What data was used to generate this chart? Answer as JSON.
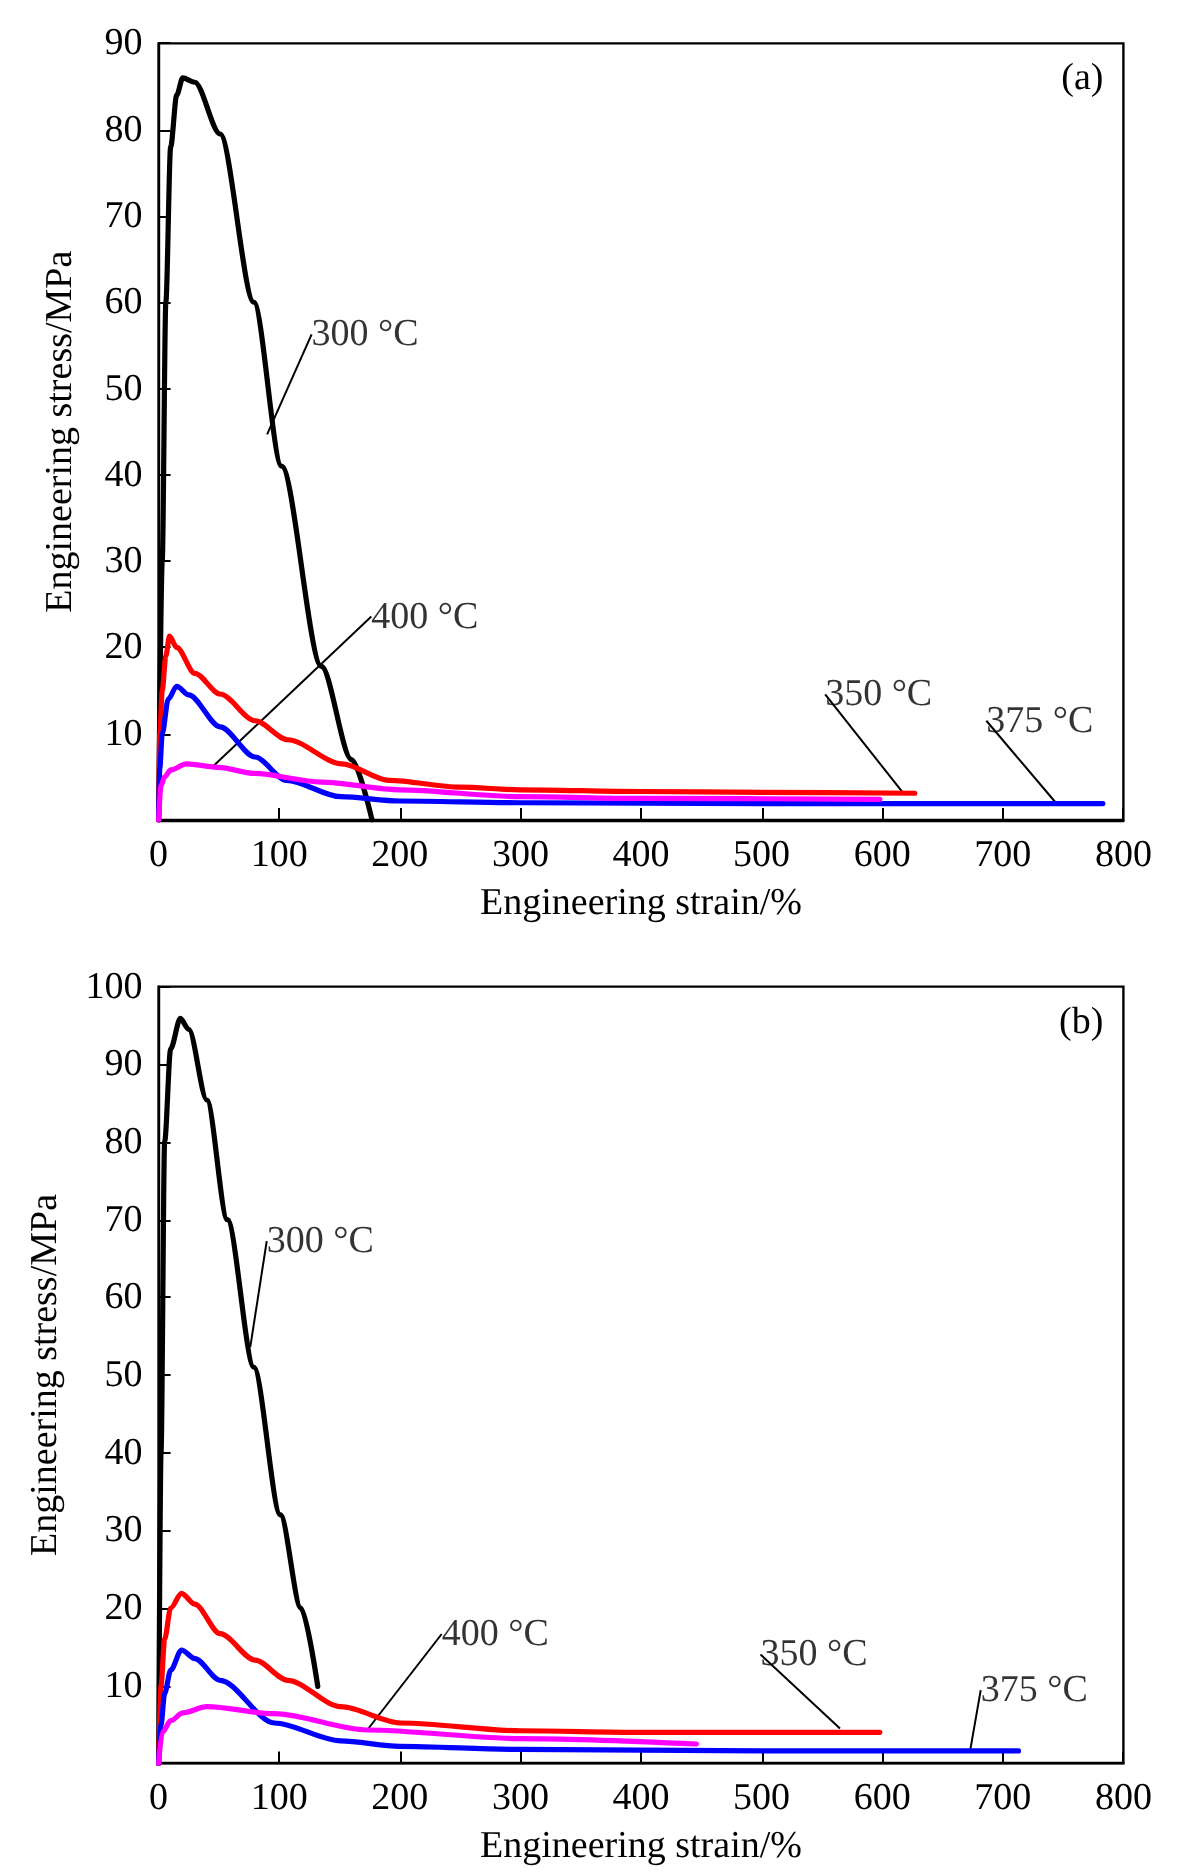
{
  "chart_data": [
    {
      "type": "line",
      "xlabel": "Engineering strain/%",
      "ylabel": "Engineering stress/MPa",
      "xlim": [
        0,
        800
      ],
      "xticks": [
        0,
        100,
        200,
        300,
        400,
        500,
        600,
        700,
        800
      ],
      "ylim": [
        0,
        90
      ],
      "yticks": [
        {
          "value": 0,
          "label": null
        },
        10,
        20,
        30,
        40,
        50,
        60,
        70,
        80,
        90
      ],
      "marker": "none",
      "line_style": "solid",
      "annotations": [
        "(a)",
        {
          "text": "300 °C",
          "x": 90,
          "y": 44.7
        },
        {
          "text": "400 °C",
          "x": 45,
          "y": 6.2
        },
        {
          "text": "350 °C",
          "x": 617,
          "y": 3.2
        },
        {
          "text": "375 °C",
          "x": 744,
          "y": 2
        }
      ],
      "series": [
        {
          "color": "#000000",
          "x": [
            0,
            3,
            6,
            10,
            15,
            20,
            30,
            51,
            79,
            102,
            135,
            160,
            177
          ],
          "values": [
            0,
            30,
            60,
            78,
            84,
            86,
            85.5,
            79.5,
            60,
            41,
            17.8,
            7,
            0
          ]
        },
        {
          "color": "#ff0000",
          "x": [
            0,
            1,
            3,
            6,
            9,
            15,
            30,
            51,
            80,
            107,
            152,
            191,
            250,
            300,
            400,
            500,
            627
          ],
          "values": [
            0,
            10,
            15,
            19,
            21.3,
            20,
            17,
            14.6,
            11.5,
            9.3,
            6.5,
            4.6,
            3.8,
            3.5,
            3.3,
            3.2,
            3.1
          ]
        },
        {
          "color": "#0000ff",
          "x": [
            0,
            1,
            3,
            8,
            15,
            25,
            51,
            80,
            106,
            151,
            200,
            300,
            500,
            783
          ],
          "values": [
            0,
            6,
            10,
            14,
            15.5,
            14.5,
            10.8,
            7.3,
            4.6,
            2.7,
            2.2,
            2,
            1.9,
            1.9
          ]
        },
        {
          "color": "#ff00ff",
          "x": [
            0,
            2,
            5,
            10,
            23,
            50,
            79,
            135,
            200,
            300,
            400,
            598
          ],
          "values": [
            0,
            4,
            5,
            5.8,
            6.5,
            6.1,
            5.4,
            4.4,
            3.5,
            2.7,
            2.5,
            2.4
          ]
        }
      ]
    },
    {
      "type": "line",
      "xlabel": "Engineering strain/%",
      "ylabel": "Engineering stress/MPa",
      "xlim": [
        0,
        800
      ],
      "xticks": [
        0,
        100,
        200,
        300,
        400,
        500,
        600,
        700,
        800
      ],
      "ylim": [
        0,
        100
      ],
      "yticks": [
        {
          "value": 0,
          "label": null
        },
        10,
        20,
        30,
        40,
        50,
        60,
        70,
        80,
        90,
        100
      ],
      "marker": "none",
      "line_style": "solid",
      "annotations": [
        "(b)",
        {
          "text": "300 °C",
          "x": 76,
          "y": 53.6
        },
        {
          "text": "400 °C",
          "x": 173,
          "y": 4.3
        },
        {
          "text": "350 °C",
          "x": 565,
          "y": 4.5
        },
        {
          "text": "375 °C",
          "x": 673,
          "y": 1.7
        }
      ],
      "series": [
        {
          "color": "#000000",
          "x": [
            0,
            2,
            5,
            10,
            18,
            25,
            40,
            57,
            79,
            101,
            118,
            132
          ],
          "values": [
            0,
            40,
            80,
            92,
            95.9,
            94.5,
            85.4,
            70,
            51,
            32,
            20,
            9.9
          ]
        },
        {
          "color": "#ff0000",
          "x": [
            0,
            2,
            5,
            10,
            19,
            30,
            51,
            80,
            107,
            151,
            201,
            300,
            400,
            598
          ],
          "values": [
            0,
            10,
            16,
            20,
            21.9,
            20.5,
            16.7,
            13.3,
            10.7,
            7.3,
            5.2,
            4.2,
            4,
            4
          ]
        },
        {
          "color": "#0000ff",
          "x": [
            0,
            2,
            5,
            10,
            19,
            30,
            51,
            96,
            151,
            200,
            300,
            500,
            713
          ],
          "values": [
            0,
            5,
            9,
            12,
            14.6,
            13.5,
            10.7,
            5.2,
            2.9,
            2.2,
            1.8,
            1.6,
            1.6
          ]
        },
        {
          "color": "#ff00ff",
          "x": [
            0,
            3,
            10,
            20,
            40,
            96,
            173,
            300,
            446
          ],
          "values": [
            0,
            4,
            5.5,
            6.5,
            7.3,
            6.4,
            4.3,
            3.2,
            2.5
          ]
        }
      ]
    }
  ]
}
